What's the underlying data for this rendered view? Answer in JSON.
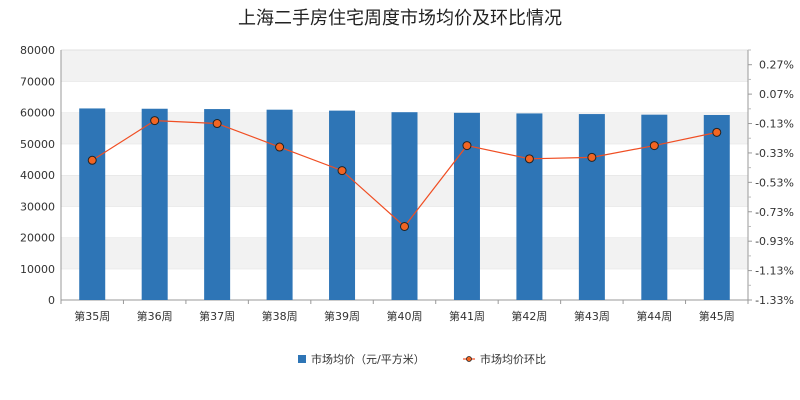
{
  "chart_data": {
    "type": "bar",
    "title": "上海二手房住宅周度市场均价及环比情况",
    "categories": [
      "第35周",
      "第36周",
      "第37周",
      "第38周",
      "第39周",
      "第40周",
      "第41周",
      "第42周",
      "第43周",
      "第44周",
      "第45周"
    ],
    "series": [
      {
        "name": "市场均价（元/平方米）",
        "type": "bar",
        "axis": "left",
        "color": "#2e75b6",
        "values": [
          61300,
          61200,
          61100,
          60900,
          60600,
          60100,
          59900,
          59700,
          59500,
          59300,
          59200
        ]
      },
      {
        "name": "市场均价环比",
        "type": "line",
        "axis": "right",
        "color": "#f04e23",
        "marker_fill": "#f26522",
        "marker_stroke": "#222222",
        "values": [
          -0.38,
          -0.11,
          -0.13,
          -0.29,
          -0.45,
          -0.83,
          -0.28,
          -0.37,
          -0.36,
          -0.28,
          -0.19
        ]
      }
    ],
    "y_left": {
      "ylim": [
        0,
        80000
      ],
      "ticks": [
        0,
        10000,
        20000,
        30000,
        40000,
        50000,
        60000,
        70000,
        80000
      ],
      "tick_labels": [
        "0",
        "10000",
        "20000",
        "30000",
        "40000",
        "50000",
        "60000",
        "70000",
        "80000"
      ]
    },
    "y_right": {
      "ylim": [
        -1.33,
        0.37
      ],
      "ticks": [
        -1.33,
        -1.13,
        -0.93,
        -0.73,
        -0.53,
        -0.33,
        -0.13,
        0.07,
        0.27
      ],
      "tick_labels": [
        "-1.33%",
        "-1.13%",
        "-0.93%",
        "-0.73%",
        "-0.53%",
        "-0.33%",
        "-0.13%",
        "0.07%",
        "0.27%"
      ]
    },
    "grid": true,
    "grid_style": "alternating horizontal bands",
    "legend_position": "bottom-center",
    "legend_labels": [
      "市场均价（元/平方米）",
      "市场均价环比"
    ]
  }
}
